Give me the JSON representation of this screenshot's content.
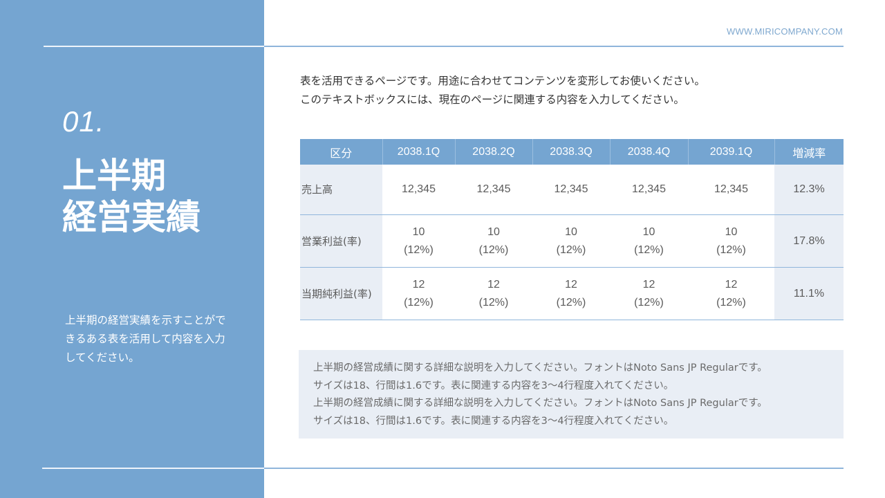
{
  "header": {
    "website": "WWW.MIRICOMPANY.COM"
  },
  "left": {
    "number": "01.",
    "title_lines": [
      "上半期",
      "経営実績"
    ],
    "description": "上半期の経営実績を示すことができるある表を活用して内容を入力してください。"
  },
  "intro": {
    "line1": "表を活用できるページです。用途に合わせてコンテンツを変形してお使いください。",
    "line2": "このテキストボックスには、現在のページに関連する内容を入力してください。"
  },
  "table": {
    "headers": [
      "区分",
      "2038.1Q",
      "2038.2Q",
      "2038.3Q",
      "2038.4Q",
      "2039.1Q",
      "増減率"
    ],
    "rows": [
      {
        "label": "売上高",
        "cells": [
          {
            "value": "12,345",
            "pct": ""
          },
          {
            "value": "12,345",
            "pct": ""
          },
          {
            "value": "12,345",
            "pct": ""
          },
          {
            "value": "12,345",
            "pct": ""
          },
          {
            "value": "12,345",
            "pct": ""
          }
        ],
        "rate": "12.3%"
      },
      {
        "label": "営業利益(率)",
        "cells": [
          {
            "value": "10",
            "pct": "(12%)"
          },
          {
            "value": "10",
            "pct": "(12%)"
          },
          {
            "value": "10",
            "pct": "(12%)"
          },
          {
            "value": "10",
            "pct": "(12%)"
          },
          {
            "value": "10",
            "pct": "(12%)"
          }
        ],
        "rate": "17.8%"
      },
      {
        "label": "当期純利益(率)",
        "cells": [
          {
            "value": "12",
            "pct": "(12%)"
          },
          {
            "value": "12",
            "pct": "(12%)"
          },
          {
            "value": "12",
            "pct": "(12%)"
          },
          {
            "value": "12",
            "pct": "(12%)"
          },
          {
            "value": "12",
            "pct": "(12%)"
          }
        ],
        "rate": "11.1%"
      }
    ]
  },
  "note": {
    "lines": [
      "上半期の経営成績に関する詳細な説明を入力してください。フォントはNoto Sans JP Regularです。",
      "サイズは18、行間は1.6です。表に関連する内容を3〜4行程度入れてください。",
      "上半期の経営成績に関する詳細な説明を入力してください。フォントはNoto Sans JP Regularです。",
      "サイズは18、行間は1.6です。表に関連する内容を3〜4行程度入れてください。"
    ]
  },
  "colors": {
    "accent": "#75a5d1",
    "cell_shade": "#e9eef5",
    "rule": "#8fb5db"
  }
}
